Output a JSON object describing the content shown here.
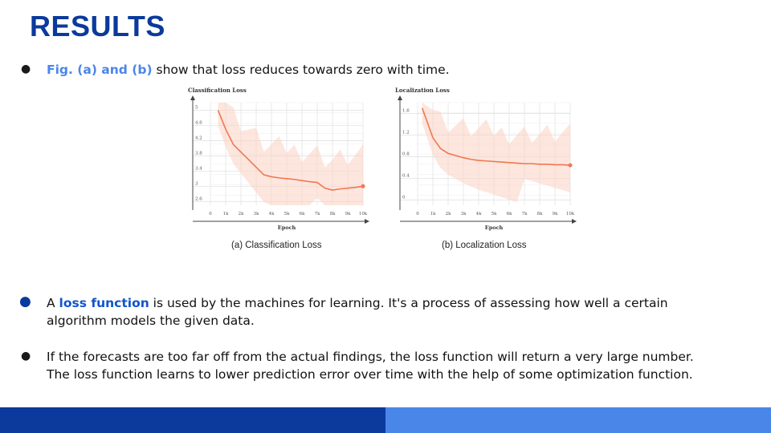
{
  "slide": {
    "title": "RESULTS",
    "bullet1": {
      "highlight": "Fig. (a) and (b)",
      "text": " show that loss reduces towards zero with time."
    },
    "bullet2": {
      "prefix": "A ",
      "highlight": "loss function",
      "line1": " is used by the machines for learning. It's a process of assessing how well a certain",
      "line2": "algorithm models the given data."
    },
    "bullet3": {
      "line1": "If the forecasts are too far off from the actual findings, the loss function will return a very large number.",
      "line2": "The loss function learns to lower prediction error over time with the help of some optimization function."
    },
    "colors": {
      "title": "#0b3a9c",
      "highlight": "#4a86e8",
      "footer_left": "#0b3a9c",
      "footer_right": "#4a86e8",
      "curve": "#f07850",
      "band": "#fbd2c2"
    }
  },
  "chart_data": [
    {
      "type": "line",
      "title": "Classification Loss",
      "xlabel": "Epoch",
      "ylabel": "",
      "caption": "(a) Classification Loss",
      "x_ticks": [
        "0",
        "1k",
        "2k",
        "3k",
        "4k",
        "5k",
        "6k",
        "7k",
        "8k",
        "9k",
        "10k"
      ],
      "y_ticks": [
        "2.6",
        "3",
        "3.4",
        "3.8",
        "4.2",
        "4.6",
        "5"
      ],
      "xlim": [
        0,
        10000
      ],
      "ylim": [
        2.5,
        5.2
      ],
      "grid": true,
      "x": [
        500,
        1000,
        1500,
        2000,
        2500,
        3000,
        3500,
        4000,
        4500,
        5000,
        5500,
        6000,
        6500,
        7000,
        7500,
        8000,
        8500,
        9000,
        9500,
        10000
      ],
      "y": [
        5.0,
        4.5,
        4.1,
        3.9,
        3.7,
        3.5,
        3.3,
        3.25,
        3.22,
        3.2,
        3.18,
        3.15,
        3.12,
        3.1,
        2.95,
        2.9,
        2.93,
        2.95,
        2.97,
        3.0
      ]
    },
    {
      "type": "line",
      "title": "Localization Loss",
      "xlabel": "Epoch",
      "ylabel": "",
      "caption": "(b) Localization Loss",
      "x_ticks": [
        "0",
        "1k",
        "2k",
        "3k",
        "4k",
        "5k",
        "6k",
        "7k",
        "8k",
        "9k",
        "10k"
      ],
      "y_ticks": [
        "0",
        "0.4",
        "0.8",
        "1.2",
        "1.6"
      ],
      "xlim": [
        0,
        10000
      ],
      "ylim": [
        -0.1,
        1.8
      ],
      "grid": true,
      "x": [
        300,
        1000,
        1500,
        2000,
        2500,
        3000,
        3500,
        4000,
        4500,
        5000,
        5500,
        6000,
        6500,
        7000,
        7500,
        8000,
        8500,
        9000,
        9500,
        10000
      ],
      "y": [
        1.7,
        1.15,
        0.95,
        0.86,
        0.82,
        0.78,
        0.75,
        0.73,
        0.72,
        0.71,
        0.7,
        0.69,
        0.68,
        0.67,
        0.67,
        0.66,
        0.66,
        0.65,
        0.65,
        0.64
      ]
    }
  ]
}
